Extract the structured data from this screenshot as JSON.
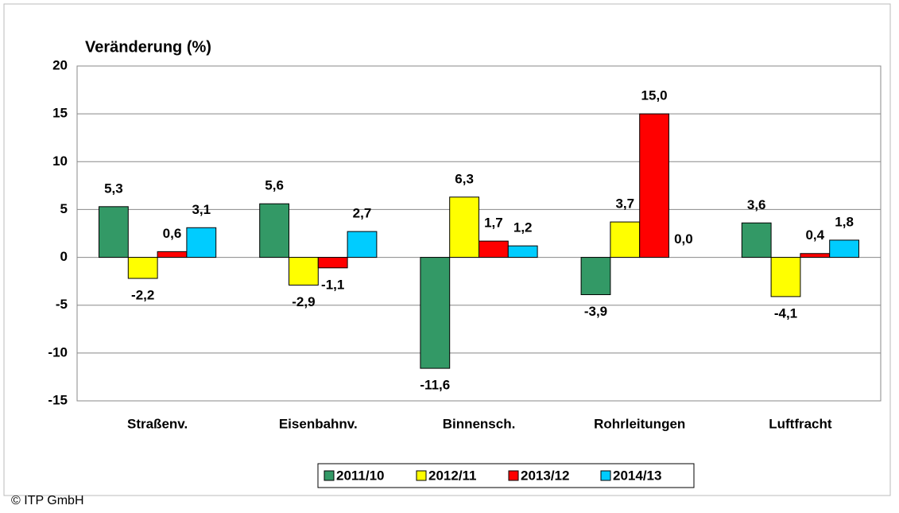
{
  "chart_data": {
    "type": "bar",
    "ylabel": "Veränderung (%)",
    "categories": [
      "Straßenv.",
      "Eisenbahnv.",
      "Binnensch.",
      "Rohrleitungen",
      "Luftfracht"
    ],
    "series": [
      {
        "name": "2011/10",
        "color": "#339966",
        "values": [
          5.3,
          5.6,
          -11.6,
          -3.9,
          3.6
        ],
        "value_labels": [
          "5,3",
          "5,6",
          "-11,6",
          "-3,9",
          "3,6"
        ]
      },
      {
        "name": "2012/11",
        "color": "#ffff00",
        "values": [
          -2.2,
          -2.9,
          6.3,
          3.7,
          -4.1
        ],
        "value_labels": [
          "-2,2",
          "-2,9",
          "6,3",
          "3,7",
          "-4,1"
        ]
      },
      {
        "name": "2013/12",
        "color": "#ff0000",
        "values": [
          0.6,
          -1.1,
          1.7,
          15.0,
          0.4
        ],
        "value_labels": [
          "0,6",
          "-1,1",
          "1,7",
          "15,0",
          "0,4"
        ]
      },
      {
        "name": "2014/13",
        "color": "#00ccff",
        "values": [
          3.1,
          2.7,
          1.2,
          0.0,
          1.8
        ],
        "value_labels": [
          "3,1",
          "2,7",
          "1,2",
          "0,0",
          "1,8"
        ]
      }
    ],
    "ylim": [
      -15,
      20
    ],
    "yticks": [
      -15,
      -10,
      -5,
      0,
      5,
      10,
      15,
      20
    ],
    "grid": true,
    "legend": "bottom",
    "footer": "© ITP GmbH"
  }
}
